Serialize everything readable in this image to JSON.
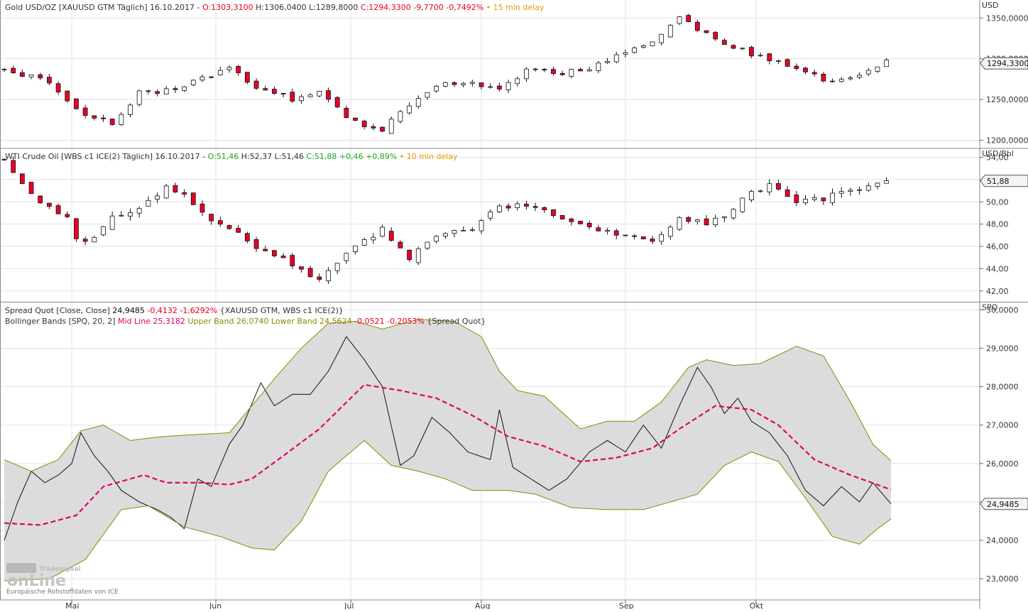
{
  "chart_data": [
    {
      "type": "candlestick",
      "panel": "gold",
      "legend_parts": [
        {
          "text": "Gold USD/OZ [XAUUSD GTM Täglich] 16.10.2017 - ",
          "color": "#333333"
        },
        {
          "text": "O:1303,3100 ",
          "color": "#e8001c"
        },
        {
          "text": "H:1306,0400 L:1289,8000 ",
          "color": "#333333"
        },
        {
          "text": "C:1294,3300 -9,7700 -0,7492%",
          "color": "#e8001c"
        },
        {
          "text": " • 15 min delay",
          "color": "#e89b00"
        }
      ],
      "unit": "USD",
      "y_ticks": [
        {
          "v": 1200,
          "label": "1200,0000"
        },
        {
          "v": 1250,
          "label": "1250,0000"
        },
        {
          "v": 1300,
          "label": "1300,0000"
        },
        {
          "v": 1350,
          "label": "1350,0000"
        }
      ],
      "ylim": [
        1190,
        1372
      ],
      "current": {
        "v": 1294.33,
        "label": "1294,3300"
      },
      "start": 1287,
      "end": 1294.33,
      "anchors": [
        [
          0,
          1287
        ],
        [
          10,
          1272
        ],
        [
          17,
          1232
        ],
        [
          24,
          1222
        ],
        [
          30,
          1258
        ],
        [
          37,
          1262
        ],
        [
          44,
          1275
        ],
        [
          50,
          1290
        ],
        [
          57,
          1262
        ],
        [
          64,
          1250
        ],
        [
          70,
          1260
        ],
        [
          77,
          1225
        ],
        [
          84,
          1212
        ],
        [
          90,
          1245
        ],
        [
          97,
          1270
        ],
        [
          104,
          1270
        ],
        [
          110,
          1262
        ],
        [
          117,
          1290
        ],
        [
          124,
          1283
        ],
        [
          130,
          1287
        ],
        [
          137,
          1308
        ],
        [
          144,
          1320
        ],
        [
          150,
          1350
        ],
        [
          157,
          1328
        ],
        [
          164,
          1310
        ],
        [
          170,
          1298
        ],
        [
          177,
          1285
        ],
        [
          184,
          1272
        ],
        [
          190,
          1282
        ],
        [
          197,
          1300
        ]
      ],
      "count": 197,
      "vol": 0.005,
      "seed": 11
    },
    {
      "type": "candlestick",
      "panel": "oil",
      "legend_parts": [
        {
          "text": "WTI Crude Oil [WBS c1 ICE(2) Täglich] 16.10.2017 - ",
          "color": "#333333"
        },
        {
          "text": "O:51,46 ",
          "color": "#22aa22"
        },
        {
          "text": "H:52,37 L:51,46 ",
          "color": "#333333"
        },
        {
          "text": "C:51,88 +0,46 +0,89%",
          "color": "#22aa22"
        },
        {
          "text": " • 10 min delay",
          "color": "#e89b00"
        }
      ],
      "unit": "USD/Bbl",
      "y_ticks": [
        {
          "v": 42,
          "label": "42,00"
        },
        {
          "v": 44,
          "label": "44,00"
        },
        {
          "v": 46,
          "label": "46,00"
        },
        {
          "v": 48,
          "label": "48,00"
        },
        {
          "v": 50,
          "label": "50,00"
        },
        {
          "v": 52,
          "label": "52,00"
        },
        {
          "v": 54,
          "label": "54,00"
        }
      ],
      "ylim": [
        41,
        54.8
      ],
      "current": {
        "v": 51.88,
        "label": "51,88"
      },
      "start": 53.8,
      "end": 51.88,
      "anchors": [
        [
          0,
          53.8
        ],
        [
          7,
          50
        ],
        [
          14,
          48.5
        ],
        [
          17,
          46
        ],
        [
          24,
          48.5
        ],
        [
          30,
          49.5
        ],
        [
          37,
          51.5
        ],
        [
          44,
          49
        ],
        [
          50,
          47.5
        ],
        [
          57,
          45.8
        ],
        [
          64,
          44.5
        ],
        [
          70,
          43.0
        ],
        [
          77,
          45.5
        ],
        [
          84,
          47.5
        ],
        [
          90,
          45.0
        ],
        [
          97,
          47.0
        ],
        [
          104,
          47.5
        ],
        [
          110,
          49.8
        ],
        [
          117,
          49.5
        ],
        [
          124,
          48.5
        ],
        [
          130,
          47.5
        ],
        [
          137,
          47.0
        ],
        [
          144,
          46.5
        ],
        [
          150,
          48.5
        ],
        [
          157,
          48.0
        ],
        [
          164,
          50.2
        ],
        [
          170,
          51.5
        ],
        [
          177,
          50.0
        ],
        [
          184,
          50.5
        ],
        [
          190,
          51.0
        ],
        [
          197,
          51.88
        ]
      ],
      "count": 197,
      "vol": 0.012,
      "seed": 23
    },
    {
      "type": "line",
      "panel": "spread",
      "legend_line1": [
        {
          "text": "Spread Quot [Close, Close] ",
          "color": "#333333"
        },
        {
          "text": "24,9485 ",
          "color": "#111111"
        },
        {
          "text": "-0,4132 -1,6292%",
          "color": "#e8001c"
        },
        {
          "text": " {XAUUSD GTM, WBS c1 ICE(2)}",
          "color": "#333333"
        }
      ],
      "legend_line2": [
        {
          "text": "Bollinger Bands [SPQ, 20, 2] ",
          "color": "#333333"
        },
        {
          "text": "Mid Line 25,3182 ",
          "color": "#e0006a"
        },
        {
          "text": "Upper Band 26,0740 ",
          "color": "#8a8a00"
        },
        {
          "text": "Lower Band 24,5624 ",
          "color": "#8a8a00"
        },
        {
          "text": "-0,0521 -0,2053%",
          "color": "#e8001c"
        },
        {
          "text": " {Spread Quot}",
          "color": "#333333"
        }
      ],
      "unit": "SPQ",
      "y_ticks": [
        {
          "v": 23,
          "label": "23,0000"
        },
        {
          "v": 24,
          "label": "24,0000"
        },
        {
          "v": 25,
          "label": "25,0000"
        },
        {
          "v": 26,
          "label": "26,0000"
        },
        {
          "v": 27,
          "label": "27,0000"
        },
        {
          "v": 28,
          "label": "28,0000"
        },
        {
          "v": 29,
          "label": "29,0000"
        },
        {
          "v": 30,
          "label": "30,0000"
        }
      ],
      "ylim": [
        22.45,
        30.2
      ],
      "current": {
        "v": 24.9485,
        "label": "24,9485"
      },
      "series": [
        {
          "name": "Spread Quot",
          "color": "#111111",
          "anchors": [
            [
              0,
              24.0
            ],
            [
              3,
              25.0
            ],
            [
              6,
              25.8
            ],
            [
              9,
              25.5
            ],
            [
              12,
              25.7
            ],
            [
              15,
              26.0
            ],
            [
              17,
              26.8
            ],
            [
              20,
              26.2
            ],
            [
              23,
              25.8
            ],
            [
              26,
              25.3
            ],
            [
              30,
              25.0
            ],
            [
              34,
              24.8
            ],
            [
              37,
              24.6
            ],
            [
              40,
              24.3
            ],
            [
              43,
              25.6
            ],
            [
              46,
              25.4
            ],
            [
              50,
              26.5
            ],
            [
              53,
              27.0
            ],
            [
              57,
              28.1
            ],
            [
              60,
              27.5
            ],
            [
              64,
              27.8
            ],
            [
              68,
              27.8
            ],
            [
              72,
              28.4
            ],
            [
              76,
              29.3
            ],
            [
              80,
              28.7
            ],
            [
              84,
              28.0
            ],
            [
              88,
              25.95
            ],
            [
              91,
              26.2
            ],
            [
              95,
              27.2
            ],
            [
              99,
              26.8
            ],
            [
              103,
              26.3
            ],
            [
              108,
              26.1
            ],
            [
              110,
              27.4
            ],
            [
              113,
              25.9
            ],
            [
              117,
              25.6
            ],
            [
              121,
              25.3
            ],
            [
              125,
              25.6
            ],
            [
              130,
              26.3
            ],
            [
              134,
              26.6
            ],
            [
              138,
              26.3
            ],
            [
              142,
              27.0
            ],
            [
              146,
              26.4
            ],
            [
              150,
              27.5
            ],
            [
              154,
              28.5
            ],
            [
              157,
              28.0
            ],
            [
              160,
              27.3
            ],
            [
              163,
              27.7
            ],
            [
              166,
              27.1
            ],
            [
              170,
              26.8
            ],
            [
              174,
              26.2
            ],
            [
              178,
              25.3
            ],
            [
              182,
              24.9
            ],
            [
              186,
              25.4
            ],
            [
              190,
              25.0
            ],
            [
              193,
              25.5
            ],
            [
              197,
              24.95
            ]
          ]
        },
        {
          "name": "Mid Line",
          "color": "#e0006a",
          "dash": "7,4",
          "anchors": [
            [
              0,
              24.45
            ],
            [
              8,
              24.4
            ],
            [
              16,
              24.65
            ],
            [
              22,
              25.4
            ],
            [
              31,
              25.7
            ],
            [
              36,
              25.5
            ],
            [
              44,
              25.5
            ],
            [
              50,
              25.45
            ],
            [
              55,
              25.6
            ],
            [
              62,
              26.2
            ],
            [
              70,
              26.9
            ],
            [
              80,
              28.05
            ],
            [
              88,
              27.9
            ],
            [
              96,
              27.7
            ],
            [
              104,
              27.25
            ],
            [
              112,
              26.7
            ],
            [
              120,
              26.45
            ],
            [
              128,
              26.05
            ],
            [
              136,
              26.15
            ],
            [
              144,
              26.4
            ],
            [
              150,
              26.9
            ],
            [
              158,
              27.5
            ],
            [
              166,
              27.4
            ],
            [
              172,
              27.0
            ],
            [
              180,
              26.1
            ],
            [
              188,
              25.7
            ],
            [
              197,
              25.32
            ]
          ]
        },
        {
          "name": "Upper Band",
          "color": "#8a8a00",
          "anchors": [
            [
              0,
              26.1
            ],
            [
              6,
              25.8
            ],
            [
              12,
              26.1
            ],
            [
              17,
              26.85
            ],
            [
              22,
              27.0
            ],
            [
              28,
              26.6
            ],
            [
              35,
              26.7
            ],
            [
              42,
              26.75
            ],
            [
              50,
              26.8
            ],
            [
              55,
              27.5
            ],
            [
              60,
              28.2
            ],
            [
              66,
              29.0
            ],
            [
              72,
              29.65
            ],
            [
              78,
              29.7
            ],
            [
              84,
              29.5
            ],
            [
              92,
              29.75
            ],
            [
              100,
              29.7
            ],
            [
              106,
              29.3
            ],
            [
              110,
              28.4
            ],
            [
              114,
              27.9
            ],
            [
              120,
              27.75
            ],
            [
              128,
              26.9
            ],
            [
              134,
              27.1
            ],
            [
              140,
              27.1
            ],
            [
              146,
              27.6
            ],
            [
              152,
              28.5
            ],
            [
              156,
              28.7
            ],
            [
              162,
              28.55
            ],
            [
              168,
              28.6
            ],
            [
              176,
              29.05
            ],
            [
              182,
              28.8
            ],
            [
              188,
              27.6
            ],
            [
              193,
              26.5
            ],
            [
              197,
              26.07
            ]
          ]
        },
        {
          "name": "Lower Band",
          "color": "#8a8a00",
          "anchors": [
            [
              0,
              22.95
            ],
            [
              10,
              23.0
            ],
            [
              18,
              23.5
            ],
            [
              26,
              24.8
            ],
            [
              32,
              24.9
            ],
            [
              40,
              24.35
            ],
            [
              48,
              24.1
            ],
            [
              55,
              23.8
            ],
            [
              60,
              23.75
            ],
            [
              66,
              24.5
            ],
            [
              72,
              25.8
            ],
            [
              80,
              26.6
            ],
            [
              86,
              25.95
            ],
            [
              92,
              25.8
            ],
            [
              98,
              25.6
            ],
            [
              104,
              25.3
            ],
            [
              112,
              25.3
            ],
            [
              118,
              25.2
            ],
            [
              126,
              24.85
            ],
            [
              134,
              24.8
            ],
            [
              142,
              24.8
            ],
            [
              148,
              25.0
            ],
            [
              154,
              25.2
            ],
            [
              160,
              25.95
            ],
            [
              166,
              26.3
            ],
            [
              172,
              26.05
            ],
            [
              178,
              25.1
            ],
            [
              184,
              24.1
            ],
            [
              190,
              23.9
            ],
            [
              194,
              24.3
            ],
            [
              197,
              24.56
            ]
          ]
        }
      ]
    }
  ],
  "x_axis": {
    "labels": [
      {
        "label": "Mai",
        "i": 15
      },
      {
        "label": "Jun",
        "i": 47
      },
      {
        "label": "Jul",
        "i": 77
      },
      {
        "label": "Aug",
        "i": 106
      },
      {
        "label": "Sep",
        "i": 138
      },
      {
        "label": "Okt",
        "i": 167
      }
    ]
  },
  "watermark": {
    "brand_small": "Tradesignal",
    "brand_big": "onLine",
    "source_note": "Europäische Rohstoffdaten von ICE"
  },
  "colors": {
    "up_fill": "#ffffff",
    "down_fill": "#e8002a",
    "candle_stroke": "#111111",
    "band_fill": "#dcdcdc",
    "grid": "#e2e2e2",
    "panel_border": "#888888"
  }
}
